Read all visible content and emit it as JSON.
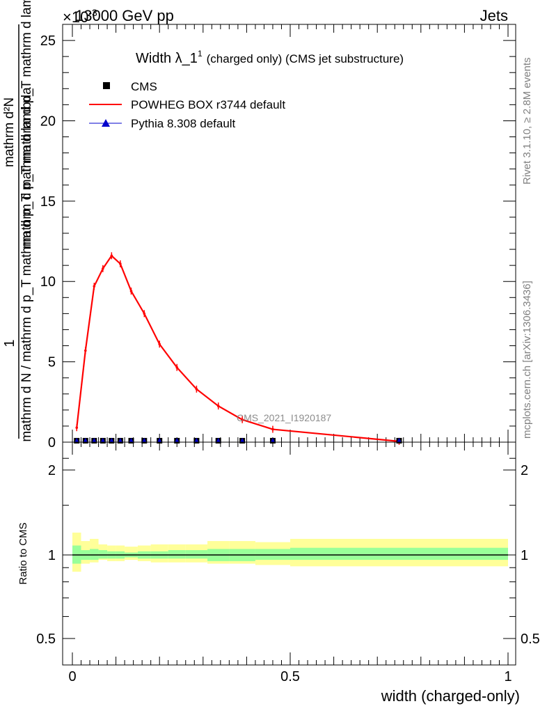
{
  "header": {
    "left": "13000 GeV pp",
    "right": "Jets",
    "exponent": "×10",
    "exponent_power": "-3"
  },
  "side_labels": {
    "rivet": "Rivet 3.1.10, ≥ 2.8M events",
    "mcplots": "mcplots.cern.ch [arXiv:1306.3436]"
  },
  "chart_data": [
    {
      "type": "line",
      "title_main": "Width λ_1",
      "title_sup": "1",
      "title_rest": "(charged only) (CMS jet substructure)",
      "watermark": "CMS_2021_I1920187",
      "ylabel_numerator": "mathrm d²N",
      "ylabel_denominator": "mathrm d p_T mathrm d p_T mathrm d lambda",
      "ylabel_factor": "mathrm d N / mathrm d p_T mathrm d p_T mathrm d lambda",
      "ylabel_one": "1",
      "xlim": [
        0,
        1
      ],
      "ylim": [
        0,
        26
      ],
      "y_ticks": [
        "0",
        "5",
        "10",
        "15",
        "20",
        "25"
      ],
      "y_tick_values": [
        0,
        5,
        10,
        15,
        20,
        25
      ],
      "legend": [
        {
          "name": "CMS",
          "marker": "square",
          "color": "#000000"
        },
        {
          "name": "POWHEG BOX r3744 default",
          "marker": "line",
          "color": "#ff0000"
        },
        {
          "name": "Pythia 8.308 default",
          "marker": "triangle",
          "color": "#0000cc"
        }
      ],
      "series": [
        {
          "name": "POWHEG BOX r3744 default",
          "color": "#ff0000",
          "x": [
            0.01,
            0.03,
            0.05,
            0.07,
            0.09,
            0.11,
            0.135,
            0.165,
            0.2,
            0.24,
            0.285,
            0.335,
            0.39,
            0.46,
            0.75
          ],
          "y": [
            0.9,
            5.7,
            9.7,
            10.8,
            11.6,
            11.1,
            9.4,
            8.0,
            6.1,
            4.65,
            3.3,
            2.25,
            1.4,
            0.8,
            0.05
          ]
        },
        {
          "name": "CMS",
          "color": "#000000",
          "x": [
            0.01,
            0.03,
            0.05,
            0.07,
            0.09,
            0.11,
            0.135,
            0.165,
            0.2,
            0.24,
            0.285,
            0.335,
            0.39,
            0.46,
            0.75
          ],
          "y": [
            0.003,
            0.003,
            0.003,
            0.003,
            0.003,
            0.003,
            0.003,
            0.003,
            0.003,
            0.003,
            0.003,
            0.003,
            0.003,
            0.003,
            0.003
          ]
        }
      ]
    },
    {
      "type": "area",
      "ylabel": "Ratio to CMS",
      "xlabel": "width (charged-only)",
      "xlim": [
        0,
        1
      ],
      "ylim": [
        0.35,
        2.3
      ],
      "y_ticks": [
        "0.5",
        "1",
        "2"
      ],
      "y_tick_values": [
        0.5,
        1,
        2
      ],
      "x_ticks": [
        "0",
        "0.5",
        "1"
      ],
      "x_tick_values": [
        0,
        0.5,
        1
      ],
      "bands": {
        "colors": {
          "outer": "#ffff99",
          "inner": "#99ff99",
          "line": "#000000"
        },
        "bins": [
          {
            "x0": 0.0,
            "x1": 0.02,
            "inner": [
              0.93,
              1.08
            ],
            "outer": [
              0.87,
              1.2
            ]
          },
          {
            "x0": 0.02,
            "x1": 0.04,
            "inner": [
              0.96,
              1.04
            ],
            "outer": [
              0.93,
              1.12
            ]
          },
          {
            "x0": 0.04,
            "x1": 0.06,
            "inner": [
              0.96,
              1.05
            ],
            "outer": [
              0.94,
              1.14
            ]
          },
          {
            "x0": 0.06,
            "x1": 0.08,
            "inner": [
              0.97,
              1.04
            ],
            "outer": [
              0.96,
              1.09
            ]
          },
          {
            "x0": 0.08,
            "x1": 0.1,
            "inner": [
              0.97,
              1.03
            ],
            "outer": [
              0.95,
              1.08
            ]
          },
          {
            "x0": 0.1,
            "x1": 0.12,
            "inner": [
              0.97,
              1.03
            ],
            "outer": [
              0.95,
              1.08
            ]
          },
          {
            "x0": 0.12,
            "x1": 0.15,
            "inner": [
              0.98,
              1.02
            ],
            "outer": [
              0.96,
              1.07
            ]
          },
          {
            "x0": 0.15,
            "x1": 0.18,
            "inner": [
              0.97,
              1.03
            ],
            "outer": [
              0.95,
              1.08
            ]
          },
          {
            "x0": 0.18,
            "x1": 0.22,
            "inner": [
              0.97,
              1.03
            ],
            "outer": [
              0.94,
              1.09
            ]
          },
          {
            "x0": 0.22,
            "x1": 0.26,
            "inner": [
              0.97,
              1.04
            ],
            "outer": [
              0.94,
              1.09
            ]
          },
          {
            "x0": 0.26,
            "x1": 0.31,
            "inner": [
              0.97,
              1.04
            ],
            "outer": [
              0.94,
              1.09
            ]
          },
          {
            "x0": 0.31,
            "x1": 0.36,
            "inner": [
              0.95,
              1.05
            ],
            "outer": [
              0.93,
              1.12
            ]
          },
          {
            "x0": 0.36,
            "x1": 0.42,
            "inner": [
              0.95,
              1.05
            ],
            "outer": [
              0.93,
              1.12
            ]
          },
          {
            "x0": 0.42,
            "x1": 0.5,
            "inner": [
              0.96,
              1.05
            ],
            "outer": [
              0.92,
              1.11
            ]
          },
          {
            "x0": 0.5,
            "x1": 1.0,
            "inner": [
              0.96,
              1.06
            ],
            "outer": [
              0.91,
              1.14
            ]
          }
        ]
      }
    }
  ]
}
